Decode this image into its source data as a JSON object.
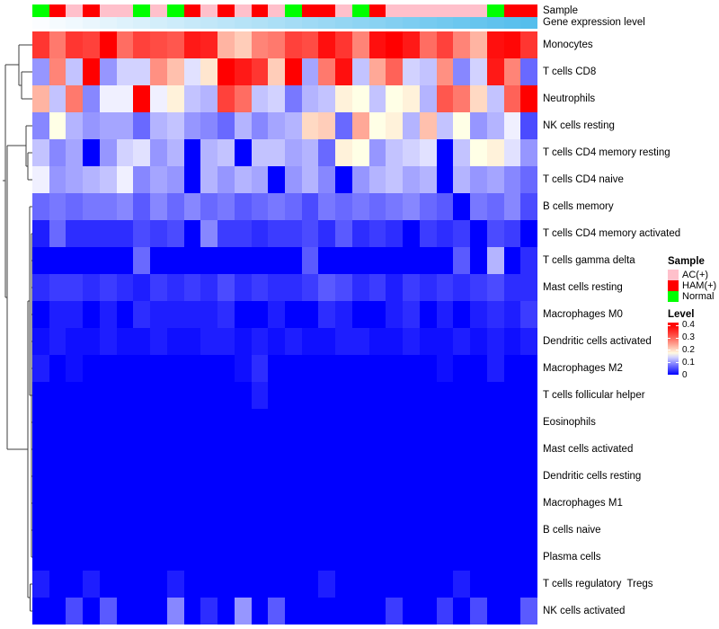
{
  "annotation_labels": {
    "sample": "Sample",
    "gene_expression": "Gene expression level"
  },
  "legend": {
    "sample_title": "Sample",
    "sample_items": [
      {
        "label": "AC(+)",
        "color": "#FFC0CB"
      },
      {
        "label": "HAM(+)",
        "color": "#FF0000"
      },
      {
        "label": "Normal",
        "color": "#00FF00"
      }
    ],
    "level_title": "Level",
    "level_ticks": [
      "0.4",
      "0.3",
      "0.2",
      "0.1",
      "0"
    ]
  },
  "chart_data": {
    "type": "heatmap",
    "rows": [
      "Monocytes",
      "T cells CD8",
      "Neutrophils",
      "NK cells resting",
      "T cells CD4 memory resting",
      "T cells CD4 naive",
      "B cells memory",
      "T cells CD4 memory activated",
      "T cells gamma delta",
      "Mast cells resting",
      "Macrophages M0",
      "Dendritic cells activated",
      "Macrophages M2",
      "T cells follicular helper",
      "Eosinophils",
      "Mast cells activated",
      "Dendritic cells resting",
      "Macrophages M1",
      "B cells naive",
      "Plasma cells",
      "T cells regulatory  Tregs",
      "NK cells activated"
    ],
    "n_columns": 30,
    "column_annotations": {
      "sample": [
        "Normal",
        "HAM(+)",
        "AC(+)",
        "HAM(+)",
        "AC(+)",
        "AC(+)",
        "Normal",
        "AC(+)",
        "Normal",
        "HAM(+)",
        "AC(+)",
        "HAM(+)",
        "AC(+)",
        "HAM(+)",
        "AC(+)",
        "Normal",
        "HAM(+)",
        "HAM(+)",
        "AC(+)",
        "Normal",
        "HAM(+)",
        "AC(+)",
        "AC(+)",
        "AC(+)",
        "AC(+)",
        "AC(+)",
        "AC(+)",
        "Normal",
        "HAM(+)",
        "HAM(+)"
      ],
      "gene_expression_gradient": {
        "from": "#FBFDFF",
        "to": "#55BEEC"
      }
    },
    "value_range": [
      0,
      0.4
    ],
    "colormap": {
      "min_color": "#0000FF",
      "mid_color": "#FFFFFF",
      "max_color": "#FF0000",
      "min": 0,
      "mid_value": 0.17,
      "max": 0.4
    },
    "values": [
      [
        0.34,
        0.28,
        0.34,
        0.33,
        0.4,
        0.29,
        0.33,
        0.32,
        0.31,
        0.37,
        0.36,
        0.23,
        0.21,
        0.27,
        0.28,
        0.33,
        0.32,
        0.38,
        0.34,
        0.27,
        0.38,
        0.4,
        0.37,
        0.29,
        0.33,
        0.27,
        0.23,
        0.38,
        0.39,
        0.34
      ],
      [
        0.1,
        0.27,
        0.13,
        0.4,
        0.1,
        0.14,
        0.14,
        0.26,
        0.22,
        0.15,
        0.19,
        0.4,
        0.37,
        0.34,
        0.21,
        0.4,
        0.11,
        0.28,
        0.38,
        0.13,
        0.24,
        0.3,
        0.14,
        0.13,
        0.26,
        0.09,
        0.14,
        0.37,
        0.27,
        0.07
      ],
      [
        0.23,
        0.13,
        0.28,
        0.09,
        0.16,
        0.16,
        0.4,
        0.16,
        0.18,
        0.13,
        0.12,
        0.33,
        0.29,
        0.13,
        0.14,
        0.08,
        0.12,
        0.13,
        0.18,
        0.17,
        0.13,
        0.17,
        0.18,
        0.12,
        0.31,
        0.28,
        0.2,
        0.13,
        0.3,
        0.4
      ],
      [
        0.09,
        0.17,
        0.12,
        0.1,
        0.11,
        0.11,
        0.07,
        0.12,
        0.13,
        0.1,
        0.09,
        0.07,
        0.12,
        0.09,
        0.11,
        0.12,
        0.2,
        0.21,
        0.07,
        0.24,
        0.17,
        0.18,
        0.12,
        0.22,
        0.13,
        0.17,
        0.1,
        0.12,
        0.16,
        0.05
      ],
      [
        0.13,
        0.09,
        0.11,
        0.0,
        0.1,
        0.14,
        0.15,
        0.1,
        0.12,
        0.0,
        0.12,
        0.13,
        0.0,
        0.13,
        0.13,
        0.11,
        0.12,
        0.07,
        0.18,
        0.17,
        0.1,
        0.13,
        0.14,
        0.15,
        0.0,
        0.13,
        0.17,
        0.18,
        0.15,
        0.1
      ],
      [
        0.16,
        0.1,
        0.11,
        0.12,
        0.13,
        0.16,
        0.09,
        0.11,
        0.1,
        0.0,
        0.12,
        0.1,
        0.12,
        0.11,
        0.0,
        0.1,
        0.12,
        0.09,
        0.0,
        0.1,
        0.12,
        0.13,
        0.11,
        0.12,
        0.0,
        0.12,
        0.1,
        0.11,
        0.09,
        0.07
      ],
      [
        0.07,
        0.08,
        0.07,
        0.08,
        0.08,
        0.09,
        0.06,
        0.09,
        0.07,
        0.09,
        0.07,
        0.08,
        0.06,
        0.07,
        0.08,
        0.07,
        0.05,
        0.08,
        0.07,
        0.08,
        0.07,
        0.08,
        0.09,
        0.07,
        0.06,
        0.0,
        0.08,
        0.07,
        0.09,
        0.05
      ],
      [
        0.02,
        0.07,
        0.03,
        0.03,
        0.03,
        0.03,
        0.05,
        0.04,
        0.05,
        0.0,
        0.09,
        0.04,
        0.04,
        0.03,
        0.04,
        0.04,
        0.05,
        0.03,
        0.06,
        0.03,
        0.04,
        0.03,
        0.0,
        0.04,
        0.03,
        0.04,
        0.0,
        0.05,
        0.04,
        0.0
      ],
      [
        0,
        0,
        0,
        0,
        0,
        0,
        0.07,
        0,
        0,
        0,
        0,
        0,
        0,
        0,
        0,
        0,
        0.06,
        0,
        0,
        0,
        0,
        0,
        0,
        0,
        0,
        0.06,
        0,
        0.12,
        0,
        0.03
      ],
      [
        0.03,
        0.04,
        0.04,
        0.03,
        0.04,
        0.03,
        0.02,
        0.04,
        0.03,
        0.04,
        0.03,
        0.05,
        0.03,
        0.04,
        0.03,
        0.03,
        0.04,
        0.06,
        0.05,
        0.03,
        0.04,
        0.02,
        0.04,
        0.03,
        0.04,
        0.03,
        0.04,
        0.05,
        0.03,
        0.03
      ],
      [
        0.0,
        0.02,
        0.02,
        0.0,
        0.02,
        0.0,
        0.03,
        0.02,
        0.02,
        0.02,
        0.02,
        0.03,
        0.0,
        0.0,
        0.02,
        0.0,
        0.0,
        0.03,
        0.02,
        0.0,
        0.0,
        0.02,
        0.03,
        0.0,
        0.02,
        0.0,
        0.02,
        0.03,
        0.02,
        0.04
      ],
      [
        0.01,
        0.02,
        0.01,
        0.01,
        0.02,
        0.01,
        0.01,
        0.02,
        0.01,
        0.01,
        0.02,
        0.02,
        0.01,
        0.02,
        0.01,
        0.02,
        0.01,
        0.01,
        0.02,
        0.02,
        0.01,
        0.01,
        0.02,
        0.01,
        0.01,
        0.02,
        0.01,
        0.02,
        0.01,
        0.02
      ],
      [
        0.02,
        0,
        0.01,
        0,
        0,
        0,
        0,
        0,
        0,
        0,
        0,
        0,
        0.01,
        0.03,
        0,
        0,
        0,
        0,
        0,
        0,
        0,
        0,
        0,
        0,
        0.01,
        0,
        0,
        0.02,
        0,
        0
      ],
      [
        0,
        0,
        0,
        0,
        0,
        0,
        0,
        0,
        0,
        0,
        0,
        0,
        0,
        0.02,
        0,
        0,
        0,
        0,
        0,
        0,
        0,
        0,
        0,
        0,
        0,
        0,
        0,
        0,
        0,
        0
      ],
      [
        0,
        0,
        0,
        0,
        0,
        0,
        0,
        0,
        0,
        0,
        0,
        0,
        0,
        0,
        0,
        0,
        0,
        0,
        0,
        0,
        0,
        0,
        0,
        0,
        0,
        0,
        0,
        0,
        0,
        0
      ],
      [
        0,
        0,
        0,
        0,
        0,
        0,
        0,
        0,
        0,
        0,
        0,
        0,
        0,
        0,
        0,
        0,
        0,
        0,
        0,
        0,
        0,
        0,
        0,
        0,
        0,
        0,
        0,
        0,
        0,
        0
      ],
      [
        0,
        0,
        0,
        0,
        0,
        0,
        0,
        0,
        0,
        0,
        0,
        0,
        0,
        0,
        0,
        0,
        0,
        0,
        0,
        0,
        0,
        0,
        0,
        0,
        0,
        0,
        0,
        0,
        0,
        0
      ],
      [
        0,
        0,
        0,
        0,
        0,
        0,
        0,
        0,
        0,
        0,
        0,
        0,
        0,
        0,
        0,
        0,
        0,
        0,
        0,
        0,
        0,
        0,
        0,
        0,
        0,
        0,
        0,
        0,
        0,
        0
      ],
      [
        0,
        0,
        0,
        0,
        0,
        0,
        0,
        0,
        0,
        0,
        0,
        0,
        0,
        0,
        0,
        0,
        0,
        0,
        0,
        0,
        0,
        0,
        0,
        0,
        0,
        0,
        0,
        0,
        0,
        0
      ],
      [
        0,
        0,
        0,
        0,
        0,
        0,
        0,
        0,
        0,
        0,
        0,
        0,
        0,
        0,
        0,
        0,
        0,
        0,
        0,
        0,
        0,
        0,
        0,
        0,
        0,
        0,
        0,
        0,
        0,
        0
      ],
      [
        0.02,
        0,
        0,
        0.02,
        0,
        0,
        0,
        0,
        0.02,
        0,
        0,
        0,
        0,
        0,
        0,
        0,
        0,
        0.02,
        0,
        0,
        0,
        0,
        0,
        0,
        0,
        0.02,
        0,
        0,
        0,
        0
      ],
      [
        0,
        0,
        0.05,
        0,
        0.06,
        0,
        0,
        0,
        0.09,
        0,
        0.03,
        0,
        0.1,
        0,
        0.06,
        0,
        0,
        0,
        0,
        0,
        0,
        0.04,
        0,
        0,
        0.04,
        0,
        0.05,
        0,
        0,
        0.06
      ]
    ]
  }
}
